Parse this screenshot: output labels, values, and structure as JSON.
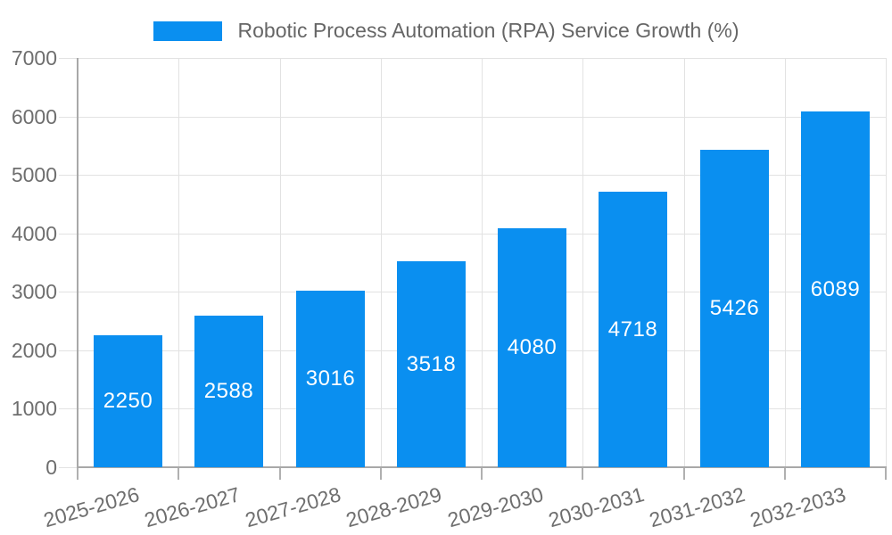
{
  "legend": {
    "label": "Robotic Process Automation (RPA) Service Growth (%)"
  },
  "chart_data": {
    "type": "bar",
    "title": "Robotic Process Automation (RPA) Service Growth (%)",
    "categories": [
      "2025-2026",
      "2026-2027",
      "2027-2028",
      "2028-2029",
      "2029-2030",
      "2030-2031",
      "2031-2032",
      "2032-2033"
    ],
    "values": [
      2250,
      2588,
      3016,
      3518,
      4080,
      4718,
      5426,
      6089
    ],
    "series": [
      {
        "name": "Robotic Process Automation (RPA) Service Growth (%)",
        "values": [
          2250,
          2588,
          3016,
          3518,
          4080,
          4718,
          5426,
          6089
        ]
      }
    ],
    "xlabel": "",
    "ylabel": "",
    "ylim": [
      0,
      7000
    ],
    "yticks": [
      0,
      1000,
      2000,
      3000,
      4000,
      5000,
      6000,
      7000
    ],
    "grid": true,
    "legend_position": "top",
    "bar_labels_shown": true,
    "x_label_rotation_deg": -16,
    "colors": {
      "bar": "#0a8ff0",
      "bar_label": "#ffffff",
      "axis_text": "#6e6e6e",
      "legend_text": "#666666",
      "gridline": "#e2e2e2",
      "axis_line": "#a8a8a8",
      "tick": "#b0b0b0",
      "background": "#ffffff"
    }
  }
}
